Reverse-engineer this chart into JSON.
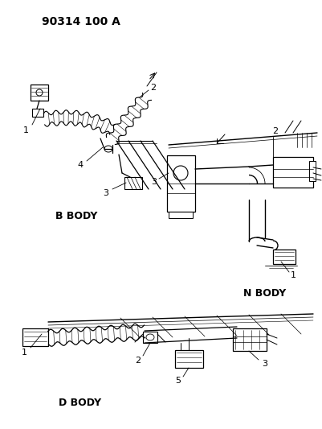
{
  "title": "90314 100 A",
  "background_color": "#ffffff",
  "text_color": "#000000",
  "b_body_label": "B BODY",
  "n_body_label": "N BODY",
  "d_body_label": "D BODY",
  "fig_width": 4.02,
  "fig_height": 5.33,
  "dpi": 100
}
